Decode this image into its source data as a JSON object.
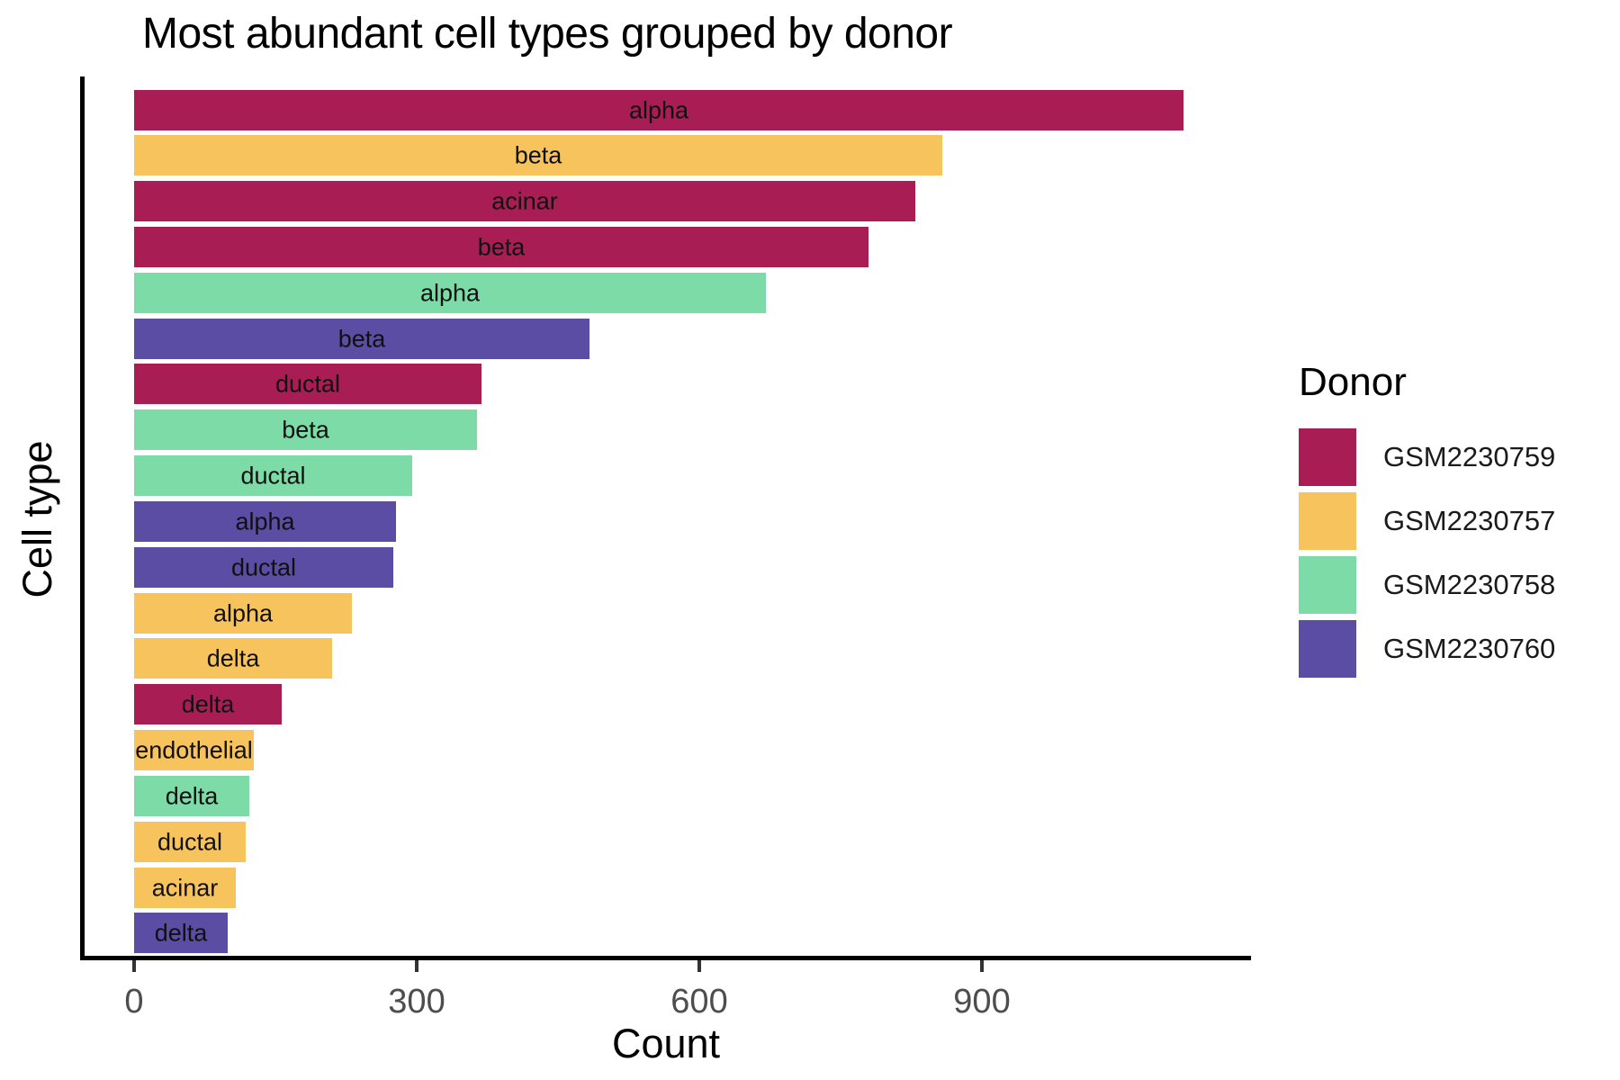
{
  "title": "Most abundant cell types grouped by donor",
  "x_axis": {
    "label": "Count",
    "ticks": [
      "0",
      "300",
      "600",
      "900"
    ]
  },
  "y_axis": {
    "label": "Cell type"
  },
  "legend": {
    "title": "Donor",
    "entries": [
      {
        "label": "GSM2230759",
        "color": "#A81E54"
      },
      {
        "label": "GSM2230757",
        "color": "#F7C35C"
      },
      {
        "label": "GSM2230758",
        "color": "#7DDBA8"
      },
      {
        "label": "GSM2230760",
        "color": "#5A4DA3"
      }
    ]
  },
  "chart_data": {
    "type": "bar",
    "orientation": "horizontal",
    "title": "Most abundant cell types grouped by donor",
    "xlabel": "Count",
    "ylabel": "Cell type",
    "xlim": [
      0,
      1185
    ],
    "x_ticks": [
      0,
      300,
      600,
      900
    ],
    "grid": false,
    "legend_title": "Donor",
    "legend_position": "right",
    "donor_colors": {
      "GSM2230759": "#A81E54",
      "GSM2230757": "#F7C35C",
      "GSM2230758": "#7DDBA8",
      "GSM2230760": "#5A4DA3"
    },
    "bars": [
      {
        "cell_type": "alpha",
        "donor": "GSM2230759",
        "count": 1114
      },
      {
        "cell_type": "beta",
        "donor": "GSM2230757",
        "count": 858
      },
      {
        "cell_type": "acinar",
        "donor": "GSM2230759",
        "count": 829
      },
      {
        "cell_type": "beta",
        "donor": "GSM2230759",
        "count": 780
      },
      {
        "cell_type": "alpha",
        "donor": "GSM2230758",
        "count": 671
      },
      {
        "cell_type": "beta",
        "donor": "GSM2230760",
        "count": 483
      },
      {
        "cell_type": "ductal",
        "donor": "GSM2230759",
        "count": 369
      },
      {
        "cell_type": "beta",
        "donor": "GSM2230758",
        "count": 364
      },
      {
        "cell_type": "ductal",
        "donor": "GSM2230758",
        "count": 295
      },
      {
        "cell_type": "alpha",
        "donor": "GSM2230760",
        "count": 278
      },
      {
        "cell_type": "ductal",
        "donor": "GSM2230760",
        "count": 275
      },
      {
        "cell_type": "alpha",
        "donor": "GSM2230757",
        "count": 231
      },
      {
        "cell_type": "delta",
        "donor": "GSM2230757",
        "count": 210
      },
      {
        "cell_type": "delta",
        "donor": "GSM2230759",
        "count": 157
      },
      {
        "cell_type": "endothelial",
        "donor": "GSM2230757",
        "count": 127
      },
      {
        "cell_type": "delta",
        "donor": "GSM2230758",
        "count": 122
      },
      {
        "cell_type": "ductal",
        "donor": "GSM2230757",
        "count": 118
      },
      {
        "cell_type": "acinar",
        "donor": "GSM2230757",
        "count": 108
      },
      {
        "cell_type": "delta",
        "donor": "GSM2230760",
        "count": 99
      }
    ]
  }
}
